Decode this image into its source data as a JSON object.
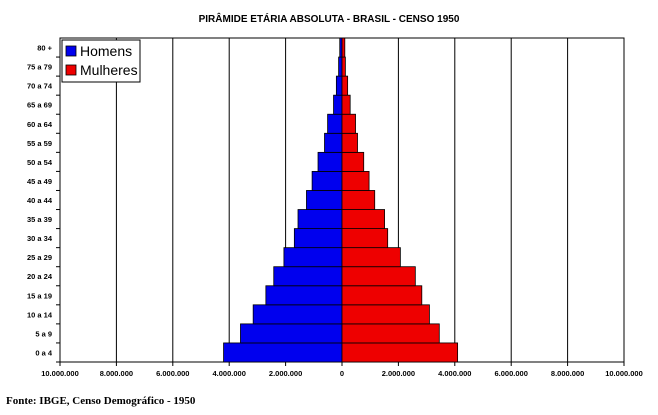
{
  "chart_data": {
    "type": "bar",
    "orientation": "horizontal",
    "layout": "population-pyramid",
    "title": "PIRÂMIDE ETÁRIA ABSOLUTA - BRASIL - CENSO 1950",
    "categories": [
      "0 a 4",
      "5 a 9",
      "10 a 14",
      "15 a 19",
      "20 a 24",
      "25 a 29",
      "30 a 34",
      "35 a 39",
      "40 a 44",
      "45 a 49",
      "50 a 54",
      "55 a 59",
      "60 a 64",
      "65 a 69",
      "70 a 74",
      "75 a 79",
      "80 +"
    ],
    "series": [
      {
        "name": "Homens",
        "color": "#0000ee",
        "values": [
          4200000,
          3600000,
          3150000,
          2700000,
          2420000,
          2060000,
          1690000,
          1560000,
          1260000,
          1060000,
          850000,
          620000,
          510000,
          300000,
          200000,
          120000,
          80000
        ]
      },
      {
        "name": "Mulheres",
        "color": "#ee0000",
        "values": [
          4100000,
          3450000,
          3100000,
          2830000,
          2600000,
          2070000,
          1620000,
          1510000,
          1160000,
          960000,
          770000,
          550000,
          480000,
          290000,
          200000,
          120000,
          100000
        ]
      }
    ],
    "xlim": [
      -10000000,
      10000000
    ],
    "xticks": [
      "10.000.000",
      "8.000.000",
      "6.000.000",
      "4.000.000",
      "2.000.000",
      "0",
      "2.000.000",
      "4.000.000",
      "6.000.000",
      "8.000.000",
      "10.000.000"
    ],
    "grid": true,
    "legend_position": "top-left"
  },
  "footer": {
    "source": "Fonte: IBGE, Censo Demográfico - 1950"
  }
}
